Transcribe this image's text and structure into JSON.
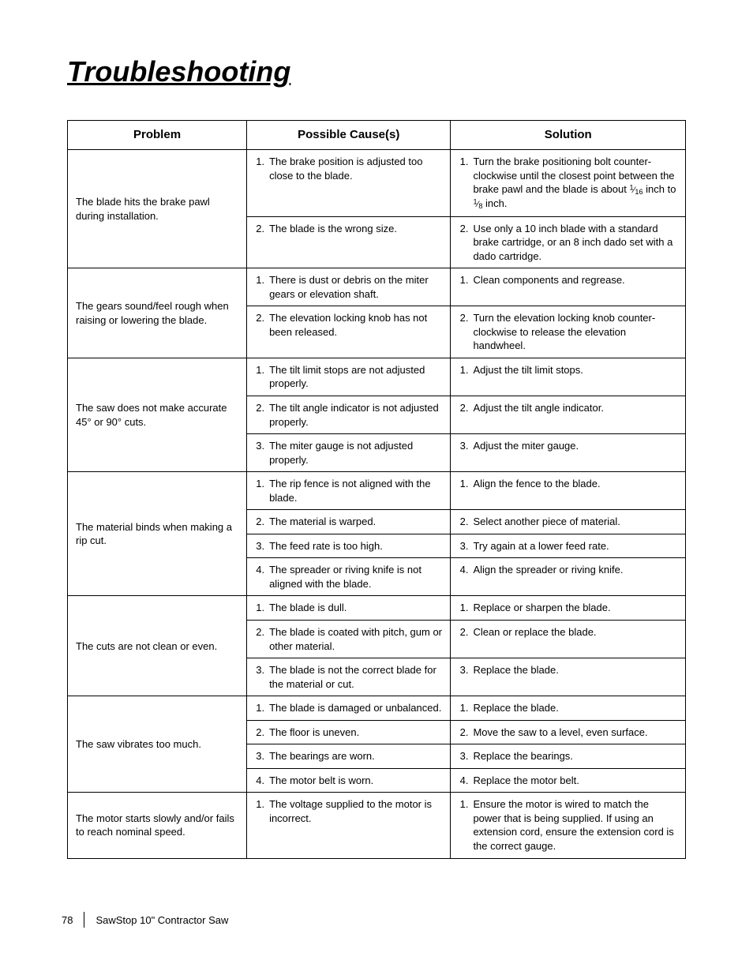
{
  "page": {
    "title": "Troubleshooting",
    "number": "78",
    "footer_text": "SawStop 10\" Contractor Saw"
  },
  "table": {
    "headers": [
      "Problem",
      "Possible Cause(s)",
      "Solution"
    ],
    "col_widths_pct": [
      29,
      33,
      38
    ],
    "border_color": "#000000",
    "header_fontsize": 15,
    "cell_fontsize": 13,
    "groups": [
      {
        "problem": "The blade hits the brake pawl during installation.",
        "rows": [
          {
            "n": "1.",
            "cause": "The brake position is adjusted too close to the blade.",
            "solution_html": "Turn the brake positioning bolt counter-clockwise until the closest point between the brake pawl and the blade is about <span class=\"frac\"><sup>1</sup><span class=\"slash\">⁄</span><sub>16</sub></span> inch to <span class=\"frac\"><sup>1</sup><span class=\"slash\">⁄</span><sub>8</sub></span> inch."
          },
          {
            "n": "2.",
            "cause": "The blade is the wrong size.",
            "solution": "Use only a 10 inch blade with a standard brake cartridge, or an 8 inch dado set with a dado cartridge."
          }
        ]
      },
      {
        "problem": "The gears sound/feel rough when raising or lowering the blade.",
        "rows": [
          {
            "n": "1.",
            "cause": "There is dust or debris on the miter gears or elevation shaft.",
            "solution": "Clean components and regrease."
          },
          {
            "n": "2.",
            "cause": "The elevation locking knob has not been released.",
            "solution": "Turn the elevation locking knob counter-clockwise to release the elevation handwheel."
          }
        ]
      },
      {
        "problem": "The saw does not make accurate 45° or 90° cuts.",
        "rows": [
          {
            "n": "1.",
            "cause": "The tilt limit stops are not adjusted properly.",
            "solution": "Adjust the tilt limit stops."
          },
          {
            "n": "2.",
            "cause": "The tilt angle indicator is not adjusted properly.",
            "solution": "Adjust the tilt angle indicator."
          },
          {
            "n": "3.",
            "cause": "The miter gauge is not adjusted properly.",
            "solution": "Adjust the miter gauge."
          }
        ]
      },
      {
        "problem": "The material binds when making a rip cut.",
        "rows": [
          {
            "n": "1.",
            "cause": "The rip fence is not aligned with the blade.",
            "solution": "Align the fence to the blade."
          },
          {
            "n": "2.",
            "cause": "The material is warped.",
            "solution": "Select another piece of material."
          },
          {
            "n": "3.",
            "cause": "The feed rate is too high.",
            "solution": "Try again at a lower feed rate."
          },
          {
            "n": "4.",
            "cause": "The spreader or riving knife is not aligned with the blade.",
            "solution": "Align the spreader or riving knife."
          }
        ]
      },
      {
        "problem": "The cuts are not clean or even.",
        "rows": [
          {
            "n": "1.",
            "cause": "The blade is dull.",
            "solution": "Replace or sharpen the blade."
          },
          {
            "n": "2.",
            "cause": "The blade is coated with pitch, gum or other material.",
            "solution": "Clean or replace the blade."
          },
          {
            "n": "3.",
            "cause": "The blade is not the correct blade for the material or cut.",
            "solution": "Replace the blade."
          }
        ]
      },
      {
        "problem": "The saw vibrates too much.",
        "rows": [
          {
            "n": "1.",
            "cause": "The blade is damaged or unbalanced.",
            "solution": "Replace the blade."
          },
          {
            "n": "2.",
            "cause": "The floor is uneven.",
            "solution": "Move the saw to a level, even surface."
          },
          {
            "n": "3.",
            "cause": "The bearings are worn.",
            "solution": "Replace the bearings."
          },
          {
            "n": "4.",
            "cause": "The motor belt is worn.",
            "solution": "Replace the motor belt."
          }
        ]
      },
      {
        "problem": "The motor starts slowly and/or fails to reach nominal speed.",
        "rows": [
          {
            "n": "1.",
            "cause": "The voltage supplied to the motor is incorrect.",
            "solution": "Ensure the motor is wired to match the power that is being supplied. If using an extension cord, ensure the extension cord is the correct gauge."
          }
        ]
      }
    ]
  }
}
